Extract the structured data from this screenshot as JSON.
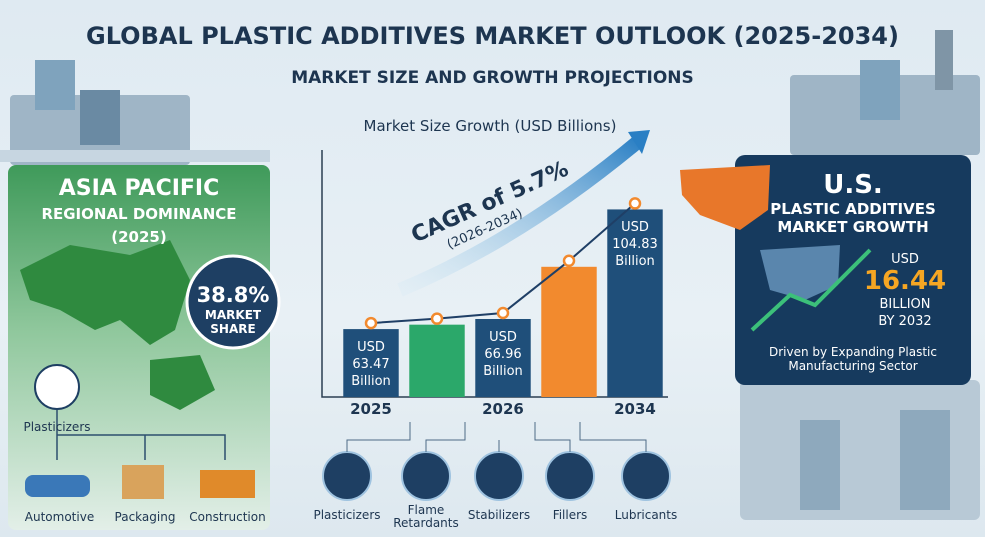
{
  "header": {
    "title": "GLOBAL PLASTIC ADDITIVES MARKET OUTLOOK (2025-2034)",
    "subtitle": "MARKET SIZE AND GROWTH PROJECTIONS"
  },
  "chart_data": {
    "type": "bar",
    "title": "Market Size Growth (USD Billions)",
    "categories": [
      "2025",
      null,
      "2026",
      null,
      "2034"
    ],
    "values": [
      63.47,
      65,
      66.96,
      85,
      104.83
    ],
    "value_labels": [
      "USD 63.47 Billion",
      null,
      "USD 66.96 Billion",
      null,
      "USD 104.83 Billion"
    ],
    "colors": [
      "#1f4f7a",
      "#2ba86a",
      "#1f4f7a",
      "#f28a2e",
      "#1f4f7a"
    ],
    "line_color": "#1f3f66",
    "ylim": [
      40,
      115
    ]
  },
  "cagr": {
    "label": "CAGR of 5.7%",
    "period": "(2026-2034)"
  },
  "asia_pacific": {
    "title": "ASIA PACIFIC",
    "subtitle": "REGIONAL DOMINANCE",
    "year": "(2025)",
    "share": "38.8%",
    "share_label": "MARKET SHARE",
    "source": "Plasticizers",
    "uses": [
      "Automotive",
      "Packaging",
      "Construction"
    ]
  },
  "us": {
    "title": "U.S.",
    "subtitle": "PLASTIC ADDITIVES MARKET GROWTH",
    "currency": "USD",
    "amount": "16.44",
    "unit": "BILLION",
    "by": "BY 2032",
    "note": "Driven by Expanding Plastic Manufacturing Sector"
  },
  "additives": [
    "Plasticizers",
    "Flame Retardants",
    "Stabilizers",
    "Fillers",
    "Lubricants"
  ]
}
